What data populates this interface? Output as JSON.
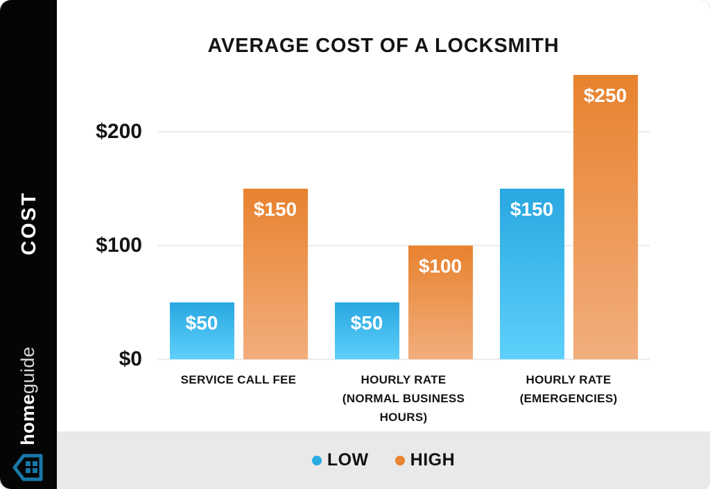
{
  "sidebar": {
    "vertical_label": "COST",
    "brand_bold": "home",
    "brand_light": "guide",
    "logo_color": "#1878A8"
  },
  "chart_data": {
    "type": "bar",
    "title": "AVERAGE COST OF A LOCKSMITH",
    "categories": [
      "SERVICE CALL FEE",
      "HOURLY RATE (NORMAL BUSINESS HOURS)",
      "HOURLY RATE (EMERGENCIES)"
    ],
    "category_lines": [
      [
        "SERVICE CALL FEE"
      ],
      [
        "HOURLY RATE",
        "(NORMAL BUSINESS",
        "HOURS)"
      ],
      [
        "HOURLY RATE",
        "(EMERGENCIES)"
      ]
    ],
    "series": [
      {
        "name": "LOW",
        "values": [
          50,
          50,
          150
        ],
        "labels": [
          "$50",
          "$50",
          "$150"
        ],
        "color_top": "#29A7E0",
        "color_bottom": "#5ED0FB"
      },
      {
        "name": "HIGH",
        "values": [
          150,
          100,
          250
        ],
        "labels": [
          "$150",
          "$100",
          "$250"
        ],
        "color_top": "#E8822E",
        "color_bottom": "#F2AE7D"
      }
    ],
    "y_axis": {
      "ticks": [
        "$0",
        "$100",
        "$200"
      ],
      "tick_values": [
        0,
        100,
        200
      ],
      "ylim": [
        0,
        250
      ]
    },
    "grid": true,
    "legend_position": "bottom"
  },
  "legend": {
    "items": [
      {
        "label": "LOW",
        "color": "#29ABE2"
      },
      {
        "label": "HIGH",
        "color": "#E8832F"
      }
    ]
  }
}
